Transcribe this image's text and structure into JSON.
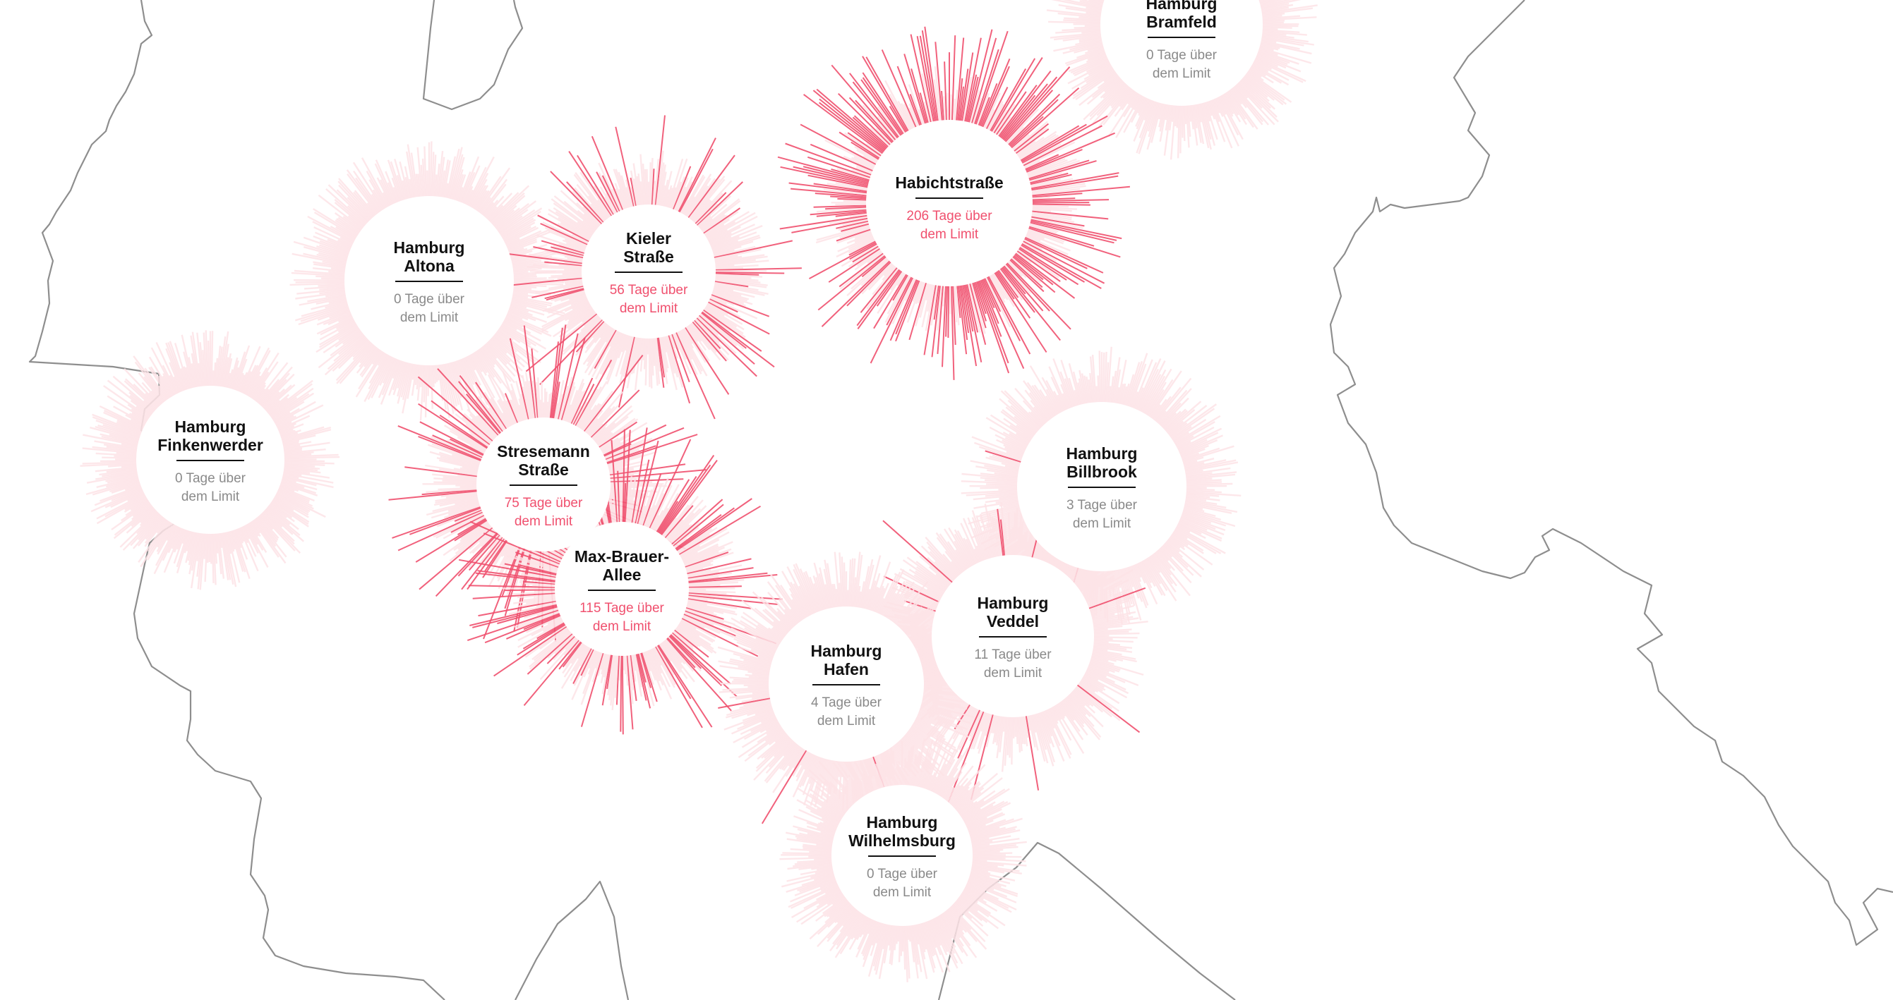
{
  "title": "",
  "colors": {
    "background": "#ffffff",
    "boundary": "#8e8e8e",
    "spike_exceed": "#f0506e",
    "spike_below": "#fde3e6",
    "station_name": "#111111",
    "days_normal": "#8a8a8a",
    "days_exceed": "#f0506e"
  },
  "stations": [
    {
      "id": "bramfeld",
      "name_lines": [
        "Hamburg",
        "Bramfeld"
      ],
      "days_text": [
        "0 Tage über",
        "dem Limit"
      ],
      "days_over_limit": 0
    },
    {
      "id": "altona",
      "name_lines": [
        "Hamburg",
        "Altona"
      ],
      "days_text": [
        "0 Tage über",
        "dem Limit"
      ],
      "days_over_limit": 0
    },
    {
      "id": "kieler",
      "name_lines": [
        "Kieler",
        "Straße"
      ],
      "days_text": [
        "56 Tage über",
        "dem Limit"
      ],
      "days_over_limit": 56
    },
    {
      "id": "habicht",
      "name_lines": [
        "Habichtstraße"
      ],
      "days_text": [
        "206 Tage über",
        "dem Limit"
      ],
      "days_over_limit": 206
    },
    {
      "id": "finkenwerder",
      "name_lines": [
        "Hamburg",
        "Finkenwerder"
      ],
      "days_text": [
        "0 Tage über",
        "dem Limit"
      ],
      "days_over_limit": 0
    },
    {
      "id": "stresemann",
      "name_lines": [
        "Stresemann",
        "Straße"
      ],
      "days_text": [
        "75 Tage über",
        "dem Limit"
      ],
      "days_over_limit": 75
    },
    {
      "id": "billbrook",
      "name_lines": [
        "Hamburg",
        "Billbrook"
      ],
      "days_text": [
        "3 Tage über",
        "dem Limit"
      ],
      "days_over_limit": 3
    },
    {
      "id": "maxbrauer",
      "name_lines": [
        "Max-Brauer-",
        "Allee"
      ],
      "days_text": [
        "115 Tage über",
        "dem Limit"
      ],
      "days_over_limit": 115
    },
    {
      "id": "veddel",
      "name_lines": [
        "Hamburg",
        "Veddel"
      ],
      "days_text": [
        "11 Tage über",
        "dem Limit"
      ],
      "days_over_limit": 11
    },
    {
      "id": "hafen",
      "name_lines": [
        "Hamburg",
        "Hafen"
      ],
      "days_text": [
        "4 Tage über",
        "dem Limit"
      ],
      "days_over_limit": 4
    },
    {
      "id": "wilhelmsburg",
      "name_lines": [
        "Hamburg",
        "Wilhelmsburg"
      ],
      "days_text": [
        "0 Tage über",
        "dem Limit"
      ],
      "days_over_limit": 0
    }
  ]
}
